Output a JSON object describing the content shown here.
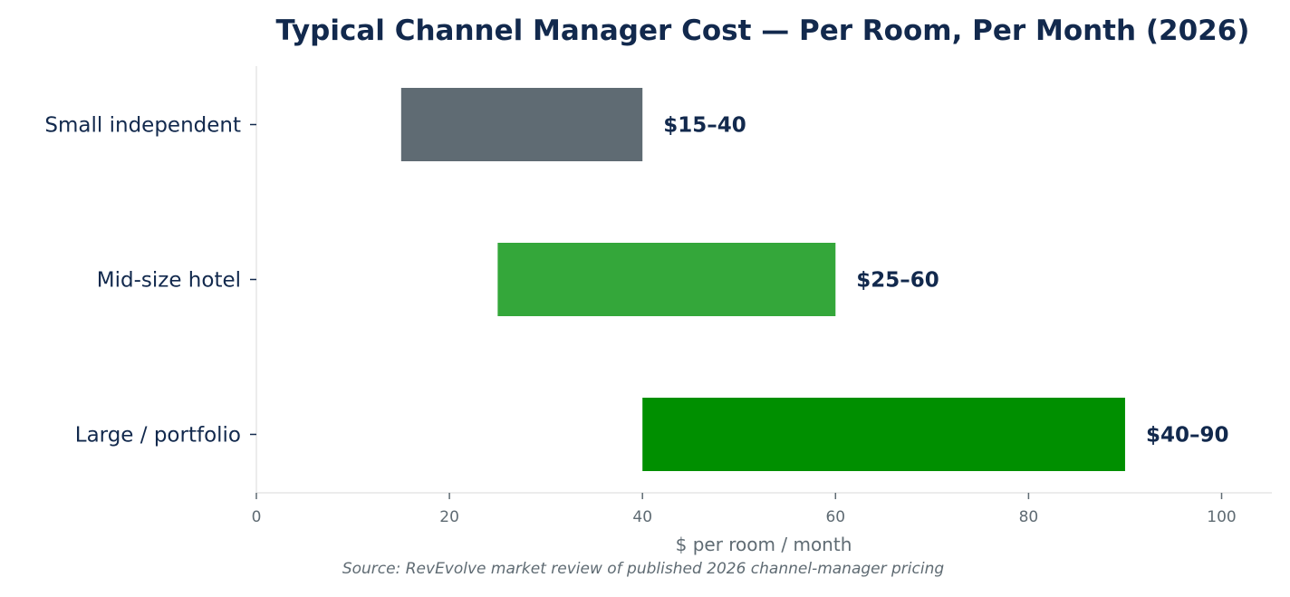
{
  "chart_data": {
    "type": "bar",
    "orientation": "horizontal",
    "title": "Typical Channel Manager Cost — Per Room, Per Month (2026)",
    "xlabel": "$ per room / month",
    "ylabel": "",
    "xlim": [
      0,
      105
    ],
    "xticks": [
      0,
      20,
      40,
      60,
      80,
      100
    ],
    "grid": false,
    "legend": "none",
    "categories": [
      "Small independent",
      "Mid-size hotel",
      "Large / portfolio"
    ],
    "ranges": [
      {
        "category": "Small independent",
        "low": 15,
        "high": 40,
        "label": "$15–40",
        "color": "#5f6b73"
      },
      {
        "category": "Mid-size hotel",
        "low": 25,
        "high": 60,
        "label": "$25–60",
        "color": "#34a73a"
      },
      {
        "category": "Large / portfolio",
        "low": 40,
        "high": 90,
        "label": "$40–90",
        "color": "#008f00"
      }
    ],
    "source": "Source: RevEvolve market review of published 2026 channel-manager pricing"
  },
  "colors": {
    "title": "#12294d",
    "category_text": "#12294d",
    "value_label": "#12294d",
    "tick_text": "#5f6b73",
    "axis_line": "#e6e6e6",
    "source_text": "#5f6b73"
  }
}
